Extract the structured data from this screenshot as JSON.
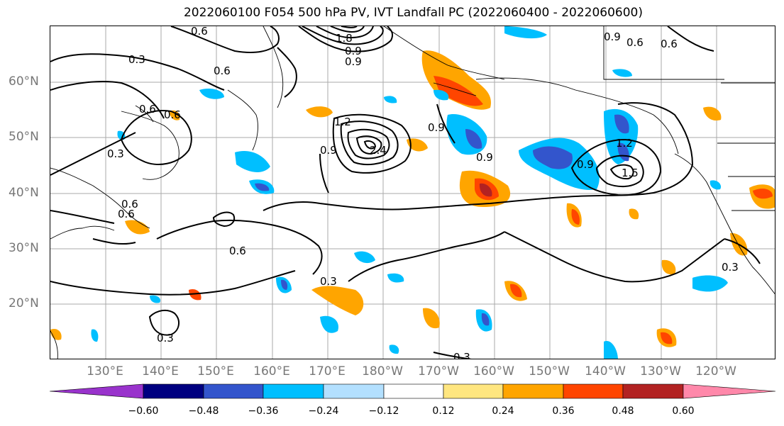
{
  "title": "2022060100 F054 500 hPa PV, IVT Landfall PC (2022060400 - 2022060600)",
  "lon_labels": [
    "130°E",
    "140°E",
    "150°E",
    "160°E",
    "170°E",
    "180°W",
    "170°W",
    "160°W",
    "150°W",
    "140°W",
    "130°W",
    "120°W"
  ],
  "lat_labels": [
    "60°N",
    "50°N",
    "40°N",
    "30°N",
    "20°N"
  ],
  "colorbar": {
    "ticks": [
      "−0.60",
      "−0.48",
      "−0.36",
      "−0.24",
      "−0.12",
      "0.12",
      "0.24",
      "0.36",
      "0.48",
      "0.60"
    ],
    "colors": [
      "#9933cc",
      "#000080",
      "#3355cc",
      "#00bfff",
      "#b3e0ff",
      "#ffffff",
      "#ffe680",
      "#ffa500",
      "#ff4500",
      "#b22222",
      "#ff88aa"
    ]
  },
  "contour_labels": [
    "0.3",
    "0.6",
    "0.6",
    "0.6",
    "0.6",
    "0.9",
    "0.9",
    "0.9",
    "1.2",
    "1.5",
    "0.9",
    "0.6",
    "0.3",
    "0.3",
    "0.3",
    "0.3",
    "0.6",
    "0.3",
    "0.9",
    "1.2",
    "2.4",
    "0.6",
    "0.9",
    "0.6",
    "0.6",
    "1.8",
    "0.9"
  ]
}
